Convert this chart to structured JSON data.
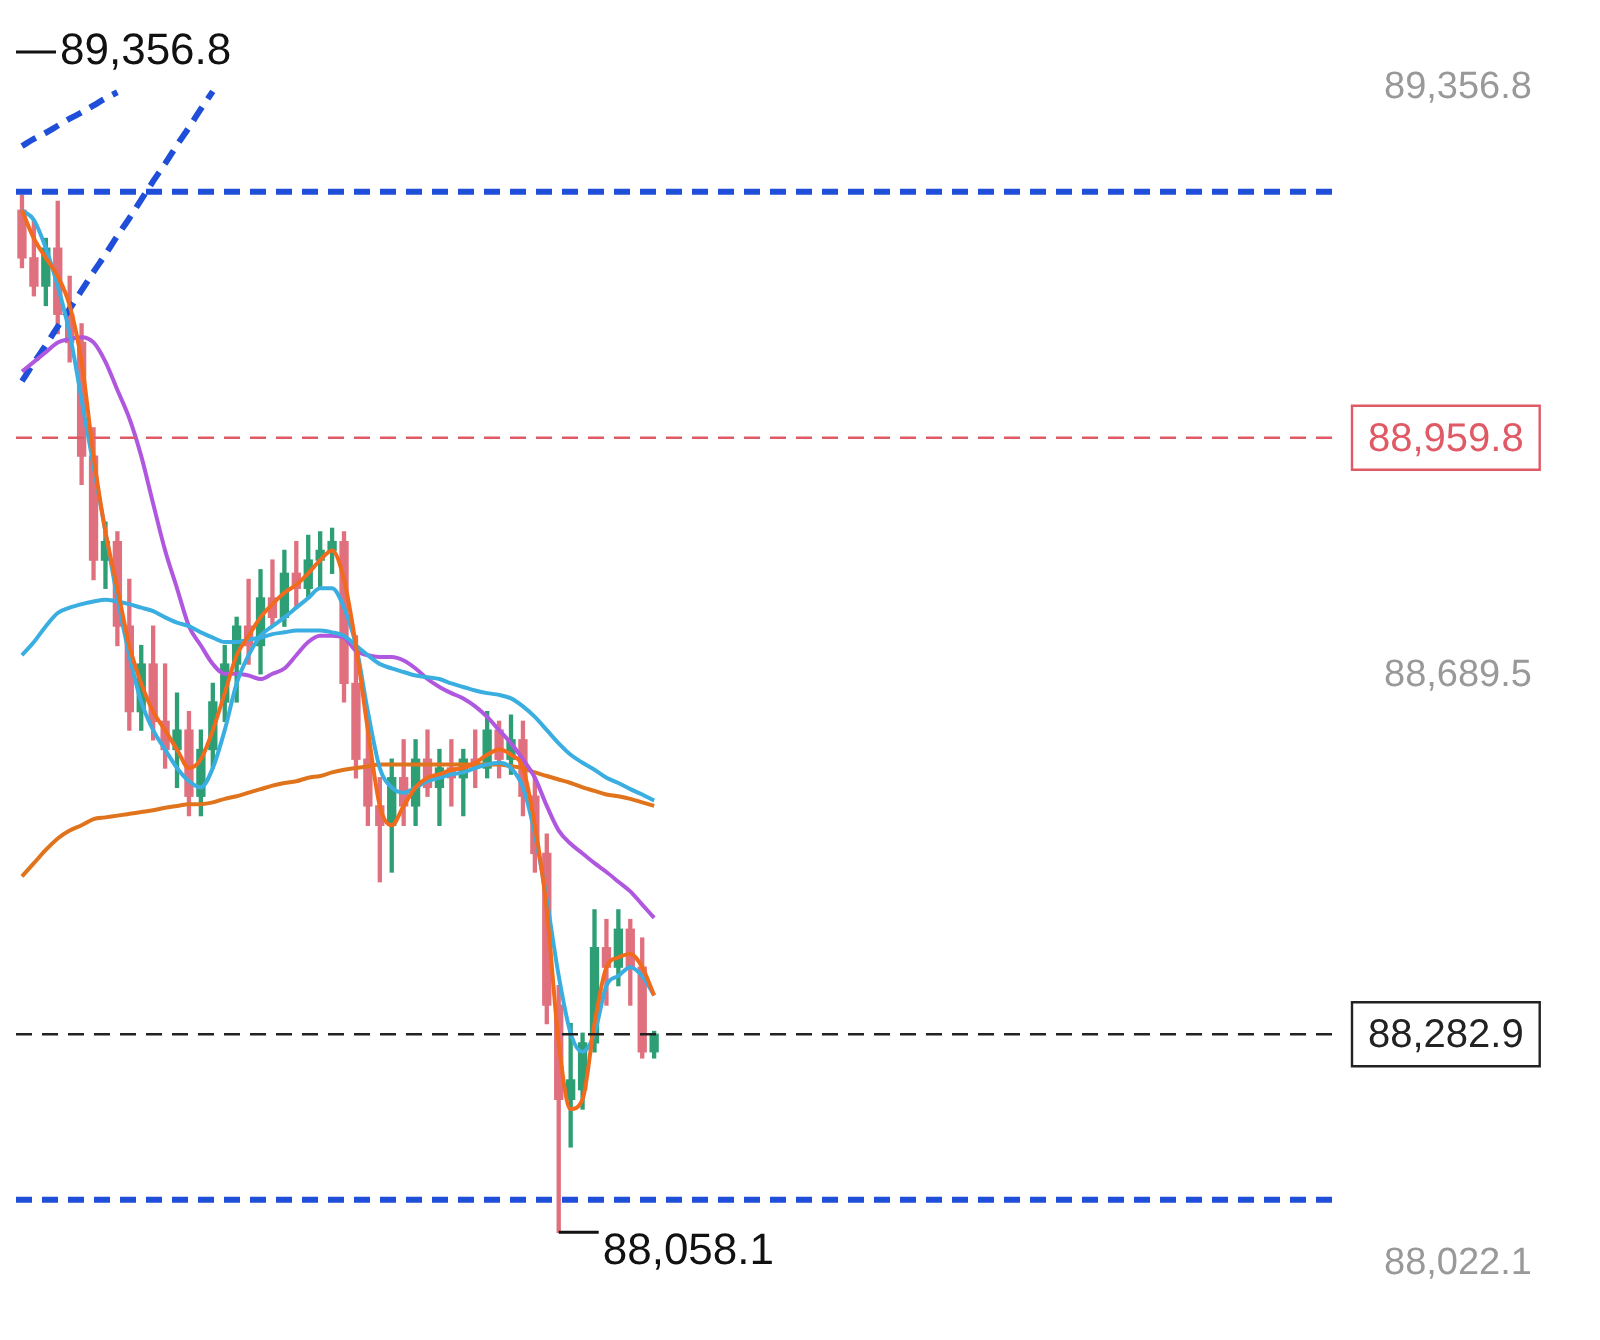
{
  "chart_data": {
    "type": "candlestick",
    "categories": [
      null,
      null,
      null,
      null,
      null,
      null,
      null,
      null,
      null,
      null,
      null,
      null,
      null,
      null,
      null,
      null,
      null,
      null,
      null,
      null,
      null,
      null,
      null,
      null,
      null,
      null,
      null,
      null,
      null,
      null,
      null,
      null,
      null,
      null,
      null,
      null,
      null,
      null,
      null,
      null,
      null,
      null,
      null,
      null,
      null,
      null,
      null,
      null,
      null,
      null,
      null,
      null,
      null,
      null,
      null,
      null,
      null,
      null,
      null,
      null,
      null,
      null,
      null,
      null,
      null,
      null,
      null,
      null,
      null,
      null,
      null,
      null,
      null,
      null,
      null,
      null,
      null,
      null,
      null,
      null,
      null,
      null,
      null,
      null,
      null,
      null,
      null,
      null,
      null,
      null,
      null,
      null,
      null,
      null,
      null,
      null,
      null,
      null,
      null,
      null,
      null,
      null,
      null,
      null,
      null,
      null,
      null,
      null,
      null,
      null,
      null
    ],
    "ohlc": [
      [
        89218,
        89235,
        89153,
        89164
      ],
      [
        89164,
        89207,
        89121,
        89132
      ],
      [
        89132,
        89186,
        89110,
        89175
      ],
      [
        89175,
        89228,
        89078,
        89100
      ],
      [
        89100,
        89143,
        89046,
        89068
      ],
      [
        89068,
        89089,
        88907,
        88939
      ],
      [
        88939,
        88971,
        88799,
        88821
      ],
      [
        88821,
        88864,
        88789,
        88842
      ],
      [
        88842,
        88853,
        88724,
        88746
      ],
      [
        88746,
        88799,
        88628,
        88649
      ],
      [
        88649,
        88724,
        88628,
        88703
      ],
      [
        88703,
        88746,
        88617,
        88638
      ],
      [
        88638,
        88703,
        88585,
        88606
      ],
      [
        88606,
        88670,
        88563,
        88628
      ],
      [
        88628,
        88649,
        88531,
        88553
      ],
      [
        88553,
        88628,
        88531,
        88606
      ],
      [
        88606,
        88681,
        88585,
        88660
      ],
      [
        88660,
        88724,
        88638,
        88703
      ],
      [
        88703,
        88756,
        88660,
        88746
      ],
      [
        88746,
        88799,
        88703,
        88724
      ],
      [
        88724,
        88810,
        88692,
        88778
      ],
      [
        88778,
        88821,
        88746,
        88756
      ],
      [
        88756,
        88832,
        88746,
        88806
      ],
      [
        88806,
        88842,
        88767,
        88789
      ],
      [
        88789,
        88849,
        88778,
        88821
      ],
      [
        88821,
        88853,
        88789,
        88832
      ],
      [
        88832,
        88857,
        88806,
        88842
      ],
      [
        88842,
        88853,
        88660,
        88681
      ],
      [
        88681,
        88735,
        88574,
        88595
      ],
      [
        88595,
        88638,
        88520,
        88542
      ],
      [
        88542,
        88574,
        88456,
        88520
      ],
      [
        88520,
        88595,
        88467,
        88574
      ],
      [
        88574,
        88617,
        88520,
        88542
      ],
      [
        88542,
        88617,
        88520,
        88595
      ],
      [
        88595,
        88628,
        88553,
        88563
      ],
      [
        88563,
        88606,
        88520,
        88585
      ],
      [
        88585,
        88617,
        88542,
        88574
      ],
      [
        88574,
        88606,
        88531,
        88595
      ],
      [
        88595,
        88628,
        88563,
        88585
      ],
      [
        88585,
        88649,
        88574,
        88628
      ],
      [
        88628,
        88638,
        88574,
        88595
      ],
      [
        88595,
        88645,
        88578,
        88617
      ],
      [
        88617,
        88638,
        88531,
        88553
      ],
      [
        88553,
        88574,
        88467,
        88488
      ],
      [
        88488,
        88510,
        88295,
        88316
      ],
      [
        88316,
        88338,
        88058.1,
        88209
      ],
      [
        88209,
        88295,
        88155,
        88231
      ],
      [
        88220,
        88284,
        88198,
        88273
      ],
      [
        88273,
        88424,
        88263,
        88381
      ],
      [
        88381,
        88413,
        88316,
        88359
      ],
      [
        88359,
        88424,
        88338,
        88402
      ],
      [
        88402,
        88413,
        88316,
        88359
      ],
      [
        88359,
        88392,
        88256,
        88263
      ],
      [
        88263,
        88286,
        88256,
        88282.9
      ],
      null,
      null,
      null,
      null,
      null,
      null,
      null,
      null,
      null,
      null,
      null,
      null,
      null,
      null,
      null,
      null,
      null,
      null,
      null,
      null,
      null,
      null,
      null,
      null,
      null,
      null,
      null,
      null,
      null,
      null,
      null,
      null,
      null,
      null,
      null,
      null,
      null,
      null,
      null,
      null,
      null,
      null,
      null,
      null,
      null,
      null,
      null,
      null,
      null,
      null,
      null,
      null,
      null,
      null,
      null,
      null,
      null
    ],
    "colors": [
      "#e0707e",
      "#e0707e",
      "#2e9e74",
      "#e0707e",
      "#e0707e",
      "#e0707e",
      "#e0707e",
      "#2e9e74",
      "#e0707e",
      "#e0707e",
      "#2e9e74",
      "#e0707e",
      "#e0707e",
      "#2e9e74",
      "#e0707e",
      "#2e9e74",
      "#2e9e74",
      "#2e9e74",
      "#2e9e74",
      "#e0707e",
      "#2e9e74",
      "#e0707e",
      "#2e9e74",
      "#e0707e",
      "#2e9e74",
      "#2e9e74",
      "#2e9e74",
      "#e0707e",
      "#e0707e",
      "#e0707e",
      "#e0707e",
      "#2e9e74",
      "#e0707e",
      "#2e9e74",
      "#e0707e",
      "#2e9e74",
      "#e0707e",
      "#2e9e74",
      "#e0707e",
      "#2e9e74",
      "#e0707e",
      "#2e9e74",
      "#e0707e",
      "#e0707e",
      "#e0707e",
      "#e0707e",
      "#2e9e74",
      "#2e9e74",
      "#2e9e74",
      "#e0707e",
      "#2e9e74",
      "#e0707e",
      "#e0707e",
      "#2e9e74",
      null,
      null,
      null,
      null,
      null,
      null,
      null,
      null,
      null,
      null,
      null,
      null,
      null,
      null,
      null,
      null,
      null,
      null,
      null,
      null,
      null,
      null,
      null,
      null,
      null,
      null,
      null,
      null,
      null,
      null,
      null,
      null,
      null,
      null,
      null,
      null,
      null,
      null,
      null,
      null,
      null,
      null,
      null,
      null,
      null,
      null,
      null,
      null,
      null,
      null,
      null,
      null,
      null,
      null,
      null,
      null,
      null
    ],
    "series": [
      {
        "type": "line",
        "color": "#f26b1d",
        "line_style": "solid",
        "values": [
          89218,
          89186,
          89164,
          89143,
          89110,
          89046,
          88939,
          88853,
          88789,
          88724,
          88681,
          88649,
          88628,
          88606,
          88585,
          88595,
          88628,
          88670,
          88713,
          88735,
          88756,
          88771,
          88784,
          88793,
          88806,
          88821,
          88832,
          88799,
          88724,
          88628,
          88542,
          88520,
          88542,
          88563,
          88574,
          88578,
          88583,
          88585,
          88591,
          88600,
          88606,
          88600,
          88585,
          88520,
          88424,
          88273,
          88198,
          88209,
          88295,
          88359,
          88370,
          88374,
          88359,
          88327,
          null,
          null,
          null,
          null,
          null,
          null,
          null,
          null,
          null,
          null,
          null,
          null,
          null,
          null,
          null,
          null,
          null,
          null,
          null,
          null,
          null,
          null,
          null,
          null,
          null,
          null,
          null,
          null,
          null,
          null,
          null,
          null,
          null,
          null,
          null,
          null,
          null,
          null,
          null,
          null,
          null,
          null,
          null,
          null,
          null,
          null,
          null,
          null,
          null,
          null,
          null,
          null,
          null,
          null,
          null,
          null,
          null
        ]
      },
      {
        "type": "line",
        "color": "#3aaee0",
        "line_style": "solid",
        "values": [
          89218,
          89207,
          89175,
          89132,
          89078,
          89003,
          88928,
          88853,
          88778,
          88713,
          88660,
          88628,
          88606,
          88585,
          88570,
          88563,
          88585,
          88628,
          88681,
          88713,
          88735,
          88746,
          88756,
          88767,
          88778,
          88789,
          88789,
          88767,
          88724,
          88649,
          88585,
          88563,
          88557,
          88563,
          88570,
          88574,
          88578,
          88580,
          88585,
          88589,
          88591,
          88585,
          88563,
          88510,
          88435,
          88349,
          88284,
          88263,
          88284,
          88338,
          88349,
          88359,
          88349,
          88327,
          null,
          null,
          null,
          null,
          null,
          null,
          null,
          null,
          null,
          null,
          null,
          null,
          null,
          null,
          null,
          null,
          null,
          null,
          null,
          null,
          null,
          null,
          null,
          null,
          null,
          null,
          null,
          null,
          null,
          null,
          null,
          null,
          null,
          null,
          null,
          null,
          null,
          null,
          null,
          null,
          null,
          null,
          null,
          null,
          null,
          null,
          null,
          null,
          null,
          null,
          null,
          null,
          null,
          null,
          null,
          null,
          null
        ]
      },
      {
        "type": "line",
        "color": "#3aaee0",
        "line_style": "solid",
        "values": [
          88713,
          88728,
          88746,
          88761,
          88767,
          88771,
          88774,
          88776,
          88774,
          88771,
          88767,
          88763,
          88756,
          88750,
          88746,
          88739,
          88733,
          88728,
          88728,
          88731,
          88733,
          88737,
          88739,
          88741,
          88741,
          88741,
          88739,
          88735,
          88724,
          88713,
          88703,
          88698,
          88694,
          88690,
          88688,
          88686,
          88681,
          88677,
          88673,
          88670,
          88668,
          88664,
          88655,
          88643,
          88628,
          88613,
          88600,
          88591,
          88583,
          88574,
          88568,
          88561,
          88555,
          88548,
          null,
          null,
          null,
          null,
          null,
          null,
          null,
          null,
          null,
          null,
          null,
          null,
          null,
          null,
          null,
          null,
          null,
          null,
          null,
          null,
          null,
          null,
          null,
          null,
          null,
          null,
          null,
          null,
          null,
          null,
          null,
          null,
          null,
          null,
          null,
          null,
          null,
          null,
          null,
          null,
          null,
          null,
          null,
          null,
          null,
          null,
          null,
          null,
          null,
          null,
          null,
          null,
          null,
          null,
          null,
          null,
          null
        ]
      },
      {
        "type": "line",
        "color": "#b057e0",
        "line_style": "solid",
        "values": [
          89035,
          89046,
          89057,
          89068,
          89072,
          89074,
          89068,
          89046,
          89014,
          88982,
          88939,
          88885,
          88832,
          88789,
          88746,
          88724,
          88703,
          88692,
          88692,
          88690,
          88686,
          88692,
          88698,
          88713,
          88728,
          88735,
          88735,
          88733,
          88718,
          88713,
          88711,
          88711,
          88707,
          88698,
          88686,
          88677,
          88670,
          88664,
          88655,
          88643,
          88628,
          88613,
          88595,
          88574,
          88542,
          88514,
          88499,
          88488,
          88477,
          88467,
          88456,
          88445,
          88430,
          88415,
          null,
          null,
          null,
          null,
          null,
          null,
          null,
          null,
          null,
          null,
          null,
          null,
          null,
          null,
          null,
          null,
          null,
          null,
          null,
          null,
          null,
          null,
          null,
          null,
          null,
          null,
          null,
          null,
          null,
          null,
          null,
          null,
          null,
          null,
          null,
          null,
          null,
          null,
          null,
          null,
          null,
          null,
          null,
          null,
          null,
          null,
          null,
          null,
          null,
          null,
          null,
          null,
          null,
          null,
          null,
          null,
          null
        ]
      },
      {
        "type": "line",
        "color": "#e0741c",
        "line_style": "solid",
        "values": [
          88462,
          88477,
          88492,
          88505,
          88514,
          88520,
          88527,
          88529,
          88531,
          88533,
          88535,
          88537,
          88540,
          88542,
          88544,
          88544,
          88546,
          88550,
          88553,
          88557,
          88561,
          88565,
          88568,
          88570,
          88574,
          88576,
          88580,
          88583,
          88585,
          88587,
          88589,
          88589,
          88589,
          88589,
          88589,
          88589,
          88589,
          88589,
          88589,
          88589,
          88589,
          88587,
          88585,
          88580,
          88576,
          88572,
          88568,
          88563,
          88559,
          88555,
          88553,
          88550,
          88546,
          88542,
          null,
          null,
          null,
          null,
          null,
          null,
          null,
          null,
          null,
          null,
          null,
          null,
          null,
          null,
          null,
          null,
          null,
          null,
          null,
          null,
          null,
          null,
          null,
          null,
          null,
          null,
          null,
          null,
          null,
          null,
          null,
          null,
          null,
          null,
          null,
          null,
          null,
          null,
          null,
          null,
          null,
          null,
          null,
          null,
          null,
          null,
          null,
          null,
          null,
          null,
          null,
          null,
          null,
          null,
          null,
          null,
          null
        ]
      },
      {
        "type": "line",
        "color": "#1f4fd8",
        "line_style": "dashed",
        "values": [
          89024,
          89045,
          89065,
          89086,
          89106,
          89127,
          89148,
          89168,
          89189,
          89209,
          89230,
          89251,
          89271,
          89292,
          89312,
          89333,
          89353,
          null,
          null,
          null,
          null,
          null,
          null,
          null,
          null,
          null,
          null,
          null,
          null,
          null,
          null,
          null,
          null,
          null,
          null,
          null,
          null,
          null,
          null,
          null,
          null,
          null,
          null,
          null,
          null,
          null,
          null,
          null,
          null,
          null,
          null,
          null,
          null,
          null,
          null,
          null,
          null,
          null,
          null,
          null,
          null,
          null,
          null,
          null,
          null,
          null,
          null,
          null,
          null,
          null,
          null,
          null,
          null,
          null,
          null,
          null,
          null,
          null,
          null,
          null,
          null,
          null,
          null,
          null,
          null,
          null,
          null,
          null,
          null,
          null,
          null,
          null,
          null,
          null,
          null,
          null,
          null,
          null,
          null,
          null,
          null,
          null,
          null,
          null,
          null,
          null,
          null,
          null,
          null,
          null,
          null
        ]
      },
      {
        "type": "line",
        "color": "#1f4fd8",
        "line_style": "dashed",
        "values": [
          89291,
          89299,
          89306,
          89314,
          89322,
          89329,
          89337,
          89345,
          89352,
          null,
          null,
          null,
          null,
          null,
          null,
          null,
          null,
          null,
          null,
          null,
          null,
          null,
          null,
          null,
          null,
          null,
          null,
          null,
          null,
          null,
          null,
          null,
          null,
          null,
          null,
          null,
          null,
          null,
          null,
          null,
          null,
          null,
          null,
          null,
          null,
          null,
          null,
          null,
          null,
          null,
          null,
          null,
          null,
          null,
          null,
          null,
          null,
          null,
          null,
          null,
          null,
          null,
          null,
          null,
          null,
          null,
          null,
          null,
          null,
          null,
          null,
          null,
          null,
          null,
          null,
          null,
          null,
          null,
          null,
          null,
          null,
          null,
          null,
          null,
          null,
          null,
          null,
          null,
          null,
          null,
          null,
          null,
          null,
          null,
          null,
          null,
          null,
          null,
          null,
          null,
          null,
          null,
          null,
          null,
          null,
          null,
          null,
          null,
          null,
          null,
          null
        ]
      }
    ],
    "ylim": [
      88022.1,
      89356.8
    ],
    "yticks": [
      {
        "value": 89356.8,
        "label": "89,356.8"
      },
      {
        "value": 88689.5,
        "label": "88,689.5"
      },
      {
        "value": 88022.1,
        "label": "88,022.1"
      }
    ],
    "tick_labels": "y",
    "ref_lines": [
      {
        "axis": "y",
        "value": 89239,
        "color": "#1f4fd8",
        "line_style": "dashed"
      },
      {
        "axis": "y",
        "value": 88959.8,
        "label": "88,959.8",
        "color": "#e05a66",
        "line_style": "dashed"
      },
      {
        "axis": "y",
        "value": 88282.9,
        "label": "88,282.9",
        "color": "#222222",
        "line_style": "dashed"
      },
      {
        "axis": "y",
        "value": 88095,
        "color": "#1f4fd8",
        "line_style": "dashed"
      }
    ],
    "annotations": [
      "89,356.8",
      "88,058.1"
    ]
  }
}
